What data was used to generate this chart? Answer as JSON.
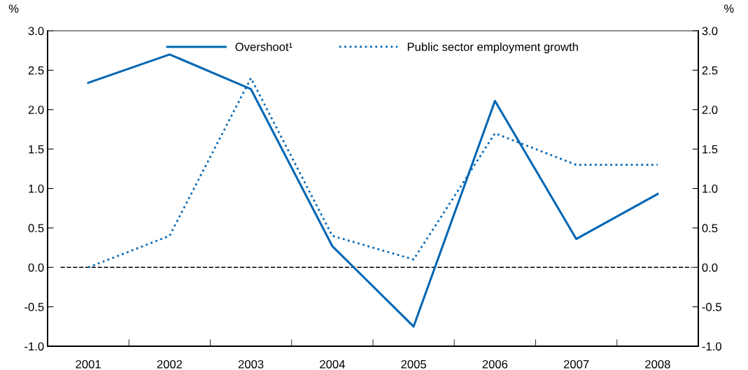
{
  "chart_data": {
    "type": "line",
    "categories": [
      "2001",
      "2002",
      "2003",
      "2004",
      "2005",
      "2006",
      "2007",
      "2008"
    ],
    "series": [
      {
        "name": "Overshoot¹",
        "color": "#0066b3",
        "line_style": "solid",
        "values": [
          2.34,
          2.7,
          2.26,
          0.27,
          -0.75,
          2.11,
          0.36,
          0.93
        ]
      },
      {
        "name": "Public sector employment growth",
        "color": "#0066b3",
        "line_style": "dotted",
        "values": [
          0.0,
          0.4,
          2.4,
          0.4,
          0.1,
          1.7,
          1.3,
          1.3
        ]
      }
    ],
    "ylabel": "%",
    "y2label": "%",
    "ylim": [
      -1.0,
      3.0
    ],
    "yticks": [
      {
        "value": -1.0,
        "label": "-1.0"
      },
      {
        "value": -0.5,
        "label": "-0.5"
      },
      {
        "value": 0.0,
        "label": "0.0"
      },
      {
        "value": 0.5,
        "label": "0.5"
      },
      {
        "value": 1.0,
        "label": "1.0"
      },
      {
        "value": 1.5,
        "label": "1.5"
      },
      {
        "value": 2.0,
        "label": "2.0"
      },
      {
        "value": 2.5,
        "label": "2.5"
      },
      {
        "value": 3.0,
        "label": "3.0"
      }
    ],
    "y2lim": [
      -1.0,
      3.0
    ],
    "y2ticks": [
      {
        "value": -1.0,
        "label": "-1.0"
      },
      {
        "value": -0.5,
        "label": "-0.5"
      },
      {
        "value": 0.0,
        "label": "0.0"
      },
      {
        "value": 0.5,
        "label": "0.5"
      },
      {
        "value": 1.0,
        "label": "1.0"
      },
      {
        "value": 1.5,
        "label": "1.5"
      },
      {
        "value": 2.0,
        "label": "2.0"
      },
      {
        "value": 2.5,
        "label": "2.5"
      },
      {
        "value": 3.0,
        "label": "3.0"
      }
    ],
    "ref_lines": [
      {
        "axis": "y",
        "value": 0,
        "label": null,
        "color": "#000000",
        "line_style": "dashed"
      }
    ],
    "grid": false,
    "legend": "top",
    "marker": "none"
  }
}
